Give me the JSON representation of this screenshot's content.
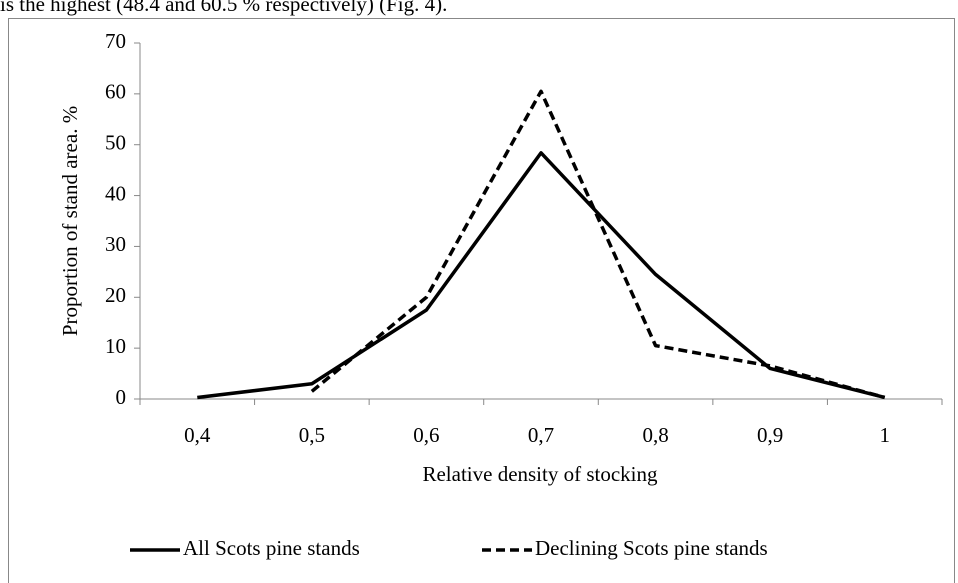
{
  "text_above": "is the highest (48.4 and 60.5 % respectively) (Fig. 4).",
  "chart_data": {
    "type": "line",
    "x_label": "Relative density of stocking",
    "y_label": "Proportion of stand area. %",
    "categories": [
      "0,4",
      "0,5",
      "0,6",
      "0,7",
      "0,8",
      "0,9",
      "1"
    ],
    "series": [
      {
        "name": "All Scots pine stands",
        "color": "#000000",
        "linestyle": "solid",
        "values": [
          0.3,
          3,
          17.5,
          48.4,
          24.5,
          6,
          0.3
        ]
      },
      {
        "name": "Declining Scots pine stands",
        "color": "#000000",
        "linestyle": "dashed",
        "values": [
          null,
          1.5,
          20,
          60.5,
          10.5,
          6.5,
          0.3
        ]
      }
    ],
    "ylim": [
      0,
      70
    ],
    "yticks": [
      0,
      10,
      20,
      30,
      40,
      50,
      60,
      70
    ],
    "grid": false,
    "legend": "bottom"
  }
}
